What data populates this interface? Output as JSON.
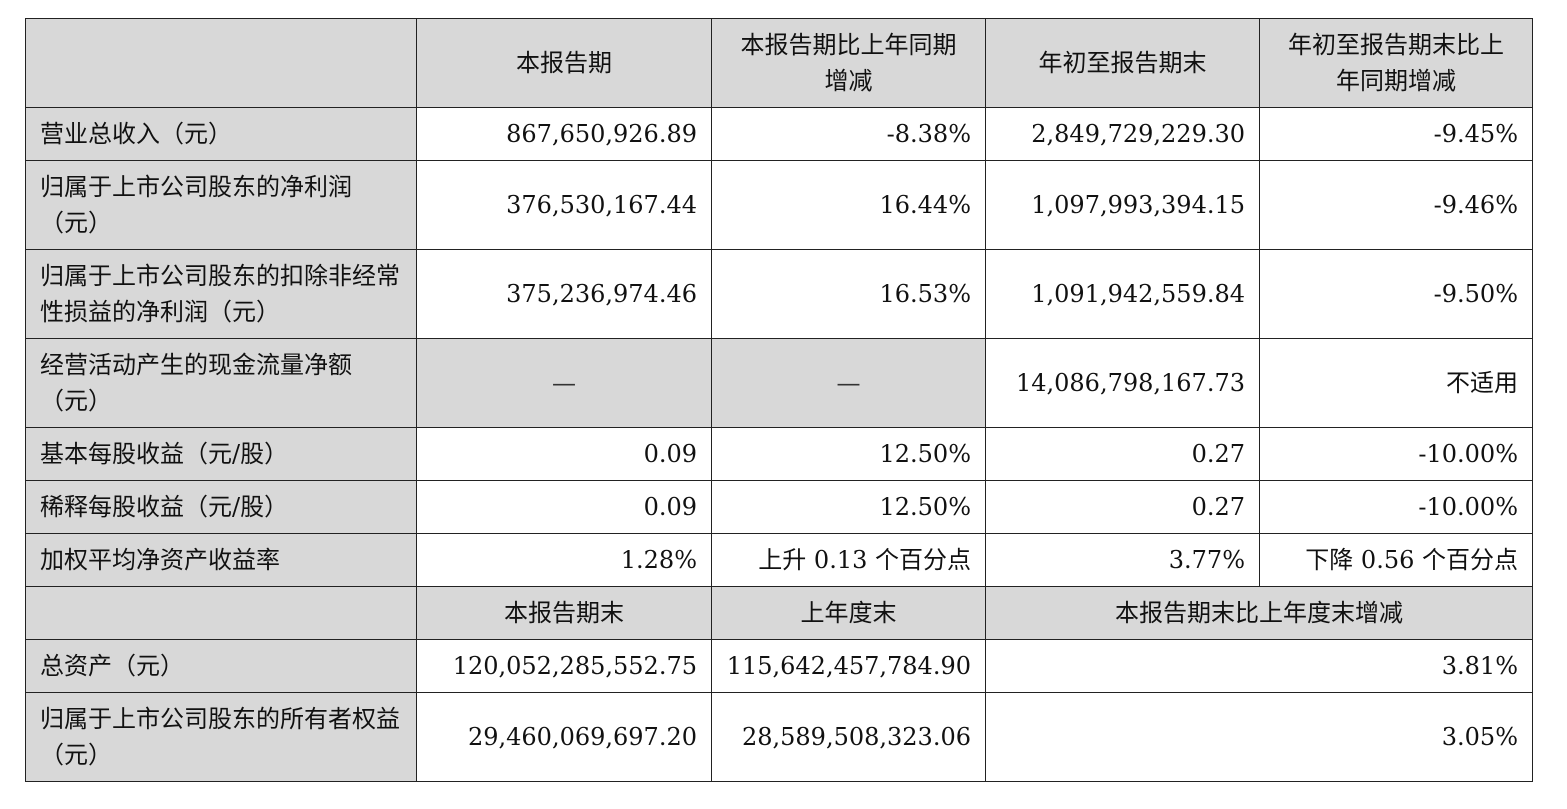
{
  "header": {
    "corner": "",
    "col1": "本报告期",
    "col2": "本报告期比上年同期增减",
    "col3": "年初至报告期末",
    "col4": "年初至报告期末比上年同期增减"
  },
  "rows": [
    {
      "label": "营业总收入（元）",
      "c1": "867,650,926.89",
      "c2": "-8.38%",
      "c3": "2,849,729,229.30",
      "c4": "-9.45%"
    },
    {
      "label": "归属于上市公司股东的净利润（元）",
      "c1": "376,530,167.44",
      "c2": "16.44%",
      "c3": "1,097,993,394.15",
      "c4": "-9.46%"
    },
    {
      "label": "归属于上市公司股东的扣除非经常性损益的净利润（元）",
      "c1": "375,236,974.46",
      "c2": "16.53%",
      "c3": "1,091,942,559.84",
      "c4": "-9.50%"
    },
    {
      "label": "经营活动产生的现金流量净额（元）",
      "c1": "—",
      "c2": "—",
      "c3": "14,086,798,167.73",
      "c4": "不适用"
    },
    {
      "label": "基本每股收益（元/股）",
      "c1": "0.09",
      "c2": "12.50%",
      "c3": "0.27",
      "c4": "-10.00%"
    },
    {
      "label": "稀释每股收益（元/股）",
      "c1": "0.09",
      "c2": "12.50%",
      "c3": "0.27",
      "c4": "-10.00%"
    },
    {
      "label": "加权平均净资产收益率",
      "c1": "1.28%",
      "c2": "上升 0.13 个百分点",
      "c3": "3.77%",
      "c4": "下降 0.56 个百分点"
    }
  ],
  "header2": {
    "corner": "",
    "col1": "本报告期末",
    "col2": "上年度末",
    "col3": "本报告期末比上年度末增减"
  },
  "rows2": [
    {
      "label": "总资产（元）",
      "c1": "120,052,285,552.75",
      "c2": "115,642,457,784.90",
      "c3": "3.81%"
    },
    {
      "label": "归属于上市公司股东的所有者权益（元）",
      "c1": "29,460,069,697.20",
      "c2": "28,589,508,323.06",
      "c3": "3.05%"
    }
  ]
}
